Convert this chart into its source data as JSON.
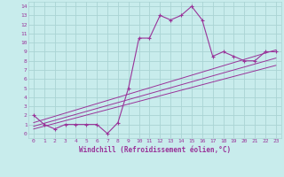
{
  "title": "",
  "xlabel": "Windchill (Refroidissement éolien,°C)",
  "background_color": "#c8ecec",
  "grid_color": "#aad4d4",
  "line_color": "#993399",
  "xlim": [
    -0.5,
    23.5
  ],
  "ylim": [
    -0.5,
    14.5
  ],
  "xticks": [
    0,
    1,
    2,
    3,
    4,
    5,
    6,
    7,
    8,
    9,
    10,
    11,
    12,
    13,
    14,
    15,
    16,
    17,
    18,
    19,
    20,
    21,
    22,
    23
  ],
  "yticks": [
    0,
    1,
    2,
    3,
    4,
    5,
    6,
    7,
    8,
    9,
    10,
    11,
    12,
    13,
    14
  ],
  "curve1_x": [
    0,
    1,
    2,
    3,
    4,
    5,
    6,
    7,
    8,
    9,
    10,
    11,
    12,
    13,
    14,
    15,
    16,
    17,
    18,
    19,
    20,
    21,
    22,
    23
  ],
  "curve1_y": [
    2,
    1,
    0.5,
    1,
    1,
    1,
    1,
    0,
    1.2,
    5,
    10.5,
    10.5,
    13,
    12.5,
    13,
    14,
    12.5,
    8.5,
    9,
    8.5,
    8,
    8,
    9,
    9
  ],
  "line1_x": [
    0,
    23
  ],
  "line1_y": [
    0.5,
    7.5
  ],
  "line2_x": [
    0,
    23
  ],
  "line2_y": [
    0.8,
    8.3
  ],
  "line3_x": [
    0,
    23
  ],
  "line3_y": [
    1.2,
    9.2
  ],
  "tick_fontsize": 4.5,
  "xlabel_fontsize": 5.5
}
